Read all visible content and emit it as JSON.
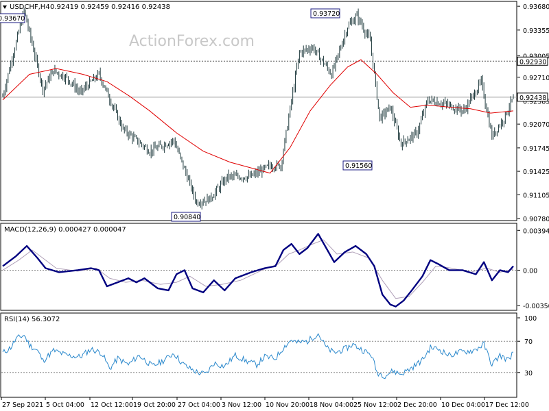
{
  "chart_data": [
    {
      "type": "candlestick",
      "title": "USDCHF,H4",
      "ohlc": [
        "0.92419",
        "0.92459",
        "0.92416",
        "0.92438"
      ],
      "watermark": "ActionForex.com",
      "ylim": [
        0.9078,
        0.937
      ],
      "yticks": [
        "0.93680",
        "0.93355",
        "0.93005",
        "0.92710",
        "0.92385",
        "0.92070",
        "0.91745",
        "0.91425",
        "0.91105",
        "0.90780"
      ],
      "ytick_values": [
        0.9368,
        0.93355,
        0.93005,
        0.9271,
        0.92385,
        0.9207,
        0.91745,
        0.91425,
        0.91105,
        0.9078
      ],
      "xlabels": [
        "27 Sep 2021",
        "5 Oct 04:00",
        "12 Oct 12:00",
        "19 Oct 20:00",
        "27 Oct 04:00",
        "3 Nov 12:00",
        "10 Nov 20:00",
        "18 Nov 04:00",
        "25 Nov 12:00",
        "2 Dec 20:00",
        "10 Dec 04:00",
        "17 Dec 12:00"
      ],
      "hlines": [
        {
          "value": 0.9293,
          "label": "0.92930",
          "style": "dotted"
        },
        {
          "value": 0.92438,
          "label": "0.92438",
          "style": "solid"
        }
      ],
      "annotations": [
        {
          "label": "0.93670",
          "value": 0.9367
        },
        {
          "label": "0.93720",
          "value": 0.9372
        },
        {
          "label": "0.91560",
          "value": 0.9156
        },
        {
          "label": "0.90840",
          "value": 0.9084
        }
      ],
      "anchors": [
        {
          "bar": 0,
          "value": 0.9245
        },
        {
          "bar": 6,
          "value": 0.929
        },
        {
          "bar": 16,
          "value": 0.9362
        },
        {
          "bar": 30,
          "value": 0.9255
        },
        {
          "bar": 38,
          "value": 0.928
        },
        {
          "bar": 48,
          "value": 0.927
        },
        {
          "bar": 58,
          "value": 0.925
        },
        {
          "bar": 72,
          "value": 0.9275
        },
        {
          "bar": 90,
          "value": 0.92
        },
        {
          "bar": 110,
          "value": 0.917
        },
        {
          "bar": 128,
          "value": 0.9185
        },
        {
          "bar": 145,
          "value": 0.91
        },
        {
          "bar": 155,
          "value": 0.9105
        },
        {
          "bar": 168,
          "value": 0.9135
        },
        {
          "bar": 185,
          "value": 0.9135
        },
        {
          "bar": 200,
          "value": 0.915
        },
        {
          "bar": 208,
          "value": 0.915
        },
        {
          "bar": 222,
          "value": 0.9305
        },
        {
          "bar": 232,
          "value": 0.9312
        },
        {
          "bar": 246,
          "value": 0.9275
        },
        {
          "bar": 258,
          "value": 0.934
        },
        {
          "bar": 265,
          "value": 0.9355
        },
        {
          "bar": 275,
          "value": 0.932
        },
        {
          "bar": 282,
          "value": 0.9215
        },
        {
          "bar": 290,
          "value": 0.923
        },
        {
          "bar": 298,
          "value": 0.918
        },
        {
          "bar": 310,
          "value": 0.9195
        },
        {
          "bar": 318,
          "value": 0.924
        },
        {
          "bar": 330,
          "value": 0.9235
        },
        {
          "bar": 345,
          "value": 0.9225
        },
        {
          "bar": 358,
          "value": 0.9265
        },
        {
          "bar": 366,
          "value": 0.919
        },
        {
          "bar": 375,
          "value": 0.9215
        },
        {
          "bar": 382,
          "value": 0.92438
        }
      ],
      "series": [
        {
          "role": "ma",
          "color": "#e00000",
          "points": [
            [
              0,
              0.924
            ],
            [
              20,
              0.9275
            ],
            [
              40,
              0.9283
            ],
            [
              60,
              0.9275
            ],
            [
              78,
              0.9265
            ],
            [
              95,
              0.9245
            ],
            [
              110,
              0.9225
            ],
            [
              130,
              0.9195
            ],
            [
              150,
              0.917
            ],
            [
              170,
              0.9155
            ],
            [
              190,
              0.9145
            ],
            [
              200,
              0.914
            ],
            [
              215,
              0.9175
            ],
            [
              230,
              0.9225
            ],
            [
              245,
              0.926
            ],
            [
              258,
              0.9285
            ],
            [
              268,
              0.9295
            ],
            [
              280,
              0.9275
            ],
            [
              292,
              0.925
            ],
            [
              305,
              0.923
            ],
            [
              318,
              0.9233
            ],
            [
              335,
              0.923
            ],
            [
              350,
              0.9228
            ],
            [
              365,
              0.9222
            ],
            [
              382,
              0.9225
            ]
          ]
        }
      ]
    },
    {
      "type": "line",
      "title": "MACD(12,26,9) 0.000427 0.000047",
      "ylim": [
        -0.0037,
        0.0041
      ],
      "yticks": [
        "0.003944",
        "0.00",
        "-0.003506"
      ],
      "ytick_values": [
        0.003944,
        0.0,
        -0.003506
      ],
      "series": [
        {
          "name": "MACD",
          "color": "#000080",
          "points": [
            [
              0,
              0.0004
            ],
            [
              10,
              0.0014
            ],
            [
              18,
              0.0024
            ],
            [
              26,
              0.0012
            ],
            [
              32,
              0.0002
            ],
            [
              42,
              -0.0002
            ],
            [
              56,
              0.0
            ],
            [
              66,
              0.0002
            ],
            [
              72,
              0.0
            ],
            [
              78,
              -0.0016
            ],
            [
              86,
              -0.0012
            ],
            [
              94,
              -0.0008
            ],
            [
              100,
              -0.0012
            ],
            [
              106,
              -0.0008
            ],
            [
              116,
              -0.0018
            ],
            [
              124,
              -0.002
            ],
            [
              130,
              -0.0004
            ],
            [
              136,
              0.0
            ],
            [
              142,
              -0.0018
            ],
            [
              150,
              -0.0022
            ],
            [
              158,
              -0.001
            ],
            [
              166,
              -0.002
            ],
            [
              174,
              -0.0008
            ],
            [
              186,
              -0.0002
            ],
            [
              196,
              0.0002
            ],
            [
              204,
              0.0004
            ],
            [
              210,
              0.002
            ],
            [
              216,
              0.0026
            ],
            [
              222,
              0.0016
            ],
            [
              228,
              0.0022
            ],
            [
              236,
              0.0036
            ],
            [
              242,
              0.0022
            ],
            [
              248,
              0.0008
            ],
            [
              256,
              0.0018
            ],
            [
              264,
              0.0024
            ],
            [
              272,
              0.0016
            ],
            [
              278,
              0.0004
            ],
            [
              284,
              -0.0024
            ],
            [
              290,
              -0.0034
            ],
            [
              294,
              -0.0036
            ],
            [
              300,
              -0.003
            ],
            [
              306,
              -0.002
            ],
            [
              314,
              -0.0006
            ],
            [
              320,
              0.001
            ],
            [
              326,
              0.0006
            ],
            [
              334,
              0.0
            ],
            [
              344,
              0.0
            ],
            [
              354,
              -0.0004
            ],
            [
              360,
              0.0008
            ],
            [
              366,
              -0.001
            ],
            [
              372,
              0.0
            ],
            [
              378,
              -0.0002
            ],
            [
              382,
              0.0004
            ]
          ]
        },
        {
          "name": "Signal",
          "color": "#b0a0b8",
          "points": [
            [
              0,
              0.0
            ],
            [
              12,
              0.001
            ],
            [
              22,
              0.002
            ],
            [
              30,
              0.0012
            ],
            [
              40,
              0.0002
            ],
            [
              56,
              -0.0001
            ],
            [
              70,
              0.0002
            ],
            [
              80,
              -0.0008
            ],
            [
              92,
              -0.0012
            ],
            [
              104,
              -0.001
            ],
            [
              118,
              -0.0014
            ],
            [
              130,
              -0.0012
            ],
            [
              140,
              -0.0006
            ],
            [
              152,
              -0.0016
            ],
            [
              164,
              -0.0014
            ],
            [
              178,
              -0.001
            ],
            [
              194,
              0.0
            ],
            [
              206,
              0.0006
            ],
            [
              214,
              0.0016
            ],
            [
              222,
              0.002
            ],
            [
              232,
              0.0026
            ],
            [
              240,
              0.003
            ],
            [
              250,
              0.0016
            ],
            [
              262,
              0.0018
            ],
            [
              274,
              0.0012
            ],
            [
              284,
              -0.001
            ],
            [
              294,
              -0.0028
            ],
            [
              304,
              -0.0026
            ],
            [
              314,
              -0.0012
            ],
            [
              324,
              0.0004
            ],
            [
              336,
              0.0002
            ],
            [
              350,
              -0.0002
            ],
            [
              362,
              0.0002
            ],
            [
              372,
              -0.0002
            ],
            [
              382,
              0.0001
            ]
          ]
        }
      ]
    },
    {
      "type": "line",
      "title": "RSI(14) 56.3072",
      "ylim": [
        0,
        100
      ],
      "yticks": [
        "100",
        "70",
        "30"
      ],
      "ytick_values": [
        100,
        70,
        30
      ],
      "hlines": [
        {
          "value": 70,
          "style": "dotted"
        },
        {
          "value": 30,
          "style": "dotted"
        }
      ],
      "series": [
        {
          "name": "RSI",
          "color": "#2a88cc",
          "points": [
            [
              0,
              55
            ],
            [
              6,
              62
            ],
            [
              10,
              73
            ],
            [
              16,
              78
            ],
            [
              20,
              65
            ],
            [
              26,
              58
            ],
            [
              30,
              45
            ],
            [
              38,
              58
            ],
            [
              48,
              52
            ],
            [
              58,
              50
            ],
            [
              66,
              60
            ],
            [
              74,
              55
            ],
            [
              80,
              35
            ],
            [
              86,
              48
            ],
            [
              94,
              40
            ],
            [
              102,
              52
            ],
            [
              112,
              38
            ],
            [
              120,
              45
            ],
            [
              128,
              55
            ],
            [
              134,
              42
            ],
            [
              140,
              35
            ],
            [
              146,
              30
            ],
            [
              152,
              28
            ],
            [
              158,
              42
            ],
            [
              166,
              38
            ],
            [
              174,
              52
            ],
            [
              182,
              45
            ],
            [
              190,
              40
            ],
            [
              196,
              50
            ],
            [
              204,
              48
            ],
            [
              210,
              62
            ],
            [
              216,
              72
            ],
            [
              220,
              68
            ],
            [
              228,
              70
            ],
            [
              236,
              80
            ],
            [
              242,
              62
            ],
            [
              248,
              55
            ],
            [
              256,
              60
            ],
            [
              262,
              66
            ],
            [
              270,
              58
            ],
            [
              276,
              52
            ],
            [
              280,
              30
            ],
            [
              286,
              26
            ],
            [
              292,
              32
            ],
            [
              298,
              28
            ],
            [
              306,
              36
            ],
            [
              314,
              46
            ],
            [
              320,
              62
            ],
            [
              326,
              60
            ],
            [
              334,
              52
            ],
            [
              342,
              56
            ],
            [
              352,
              58
            ],
            [
              360,
              66
            ],
            [
              366,
              40
            ],
            [
              372,
              52
            ],
            [
              378,
              46
            ],
            [
              382,
              56
            ]
          ]
        }
      ]
    }
  ]
}
